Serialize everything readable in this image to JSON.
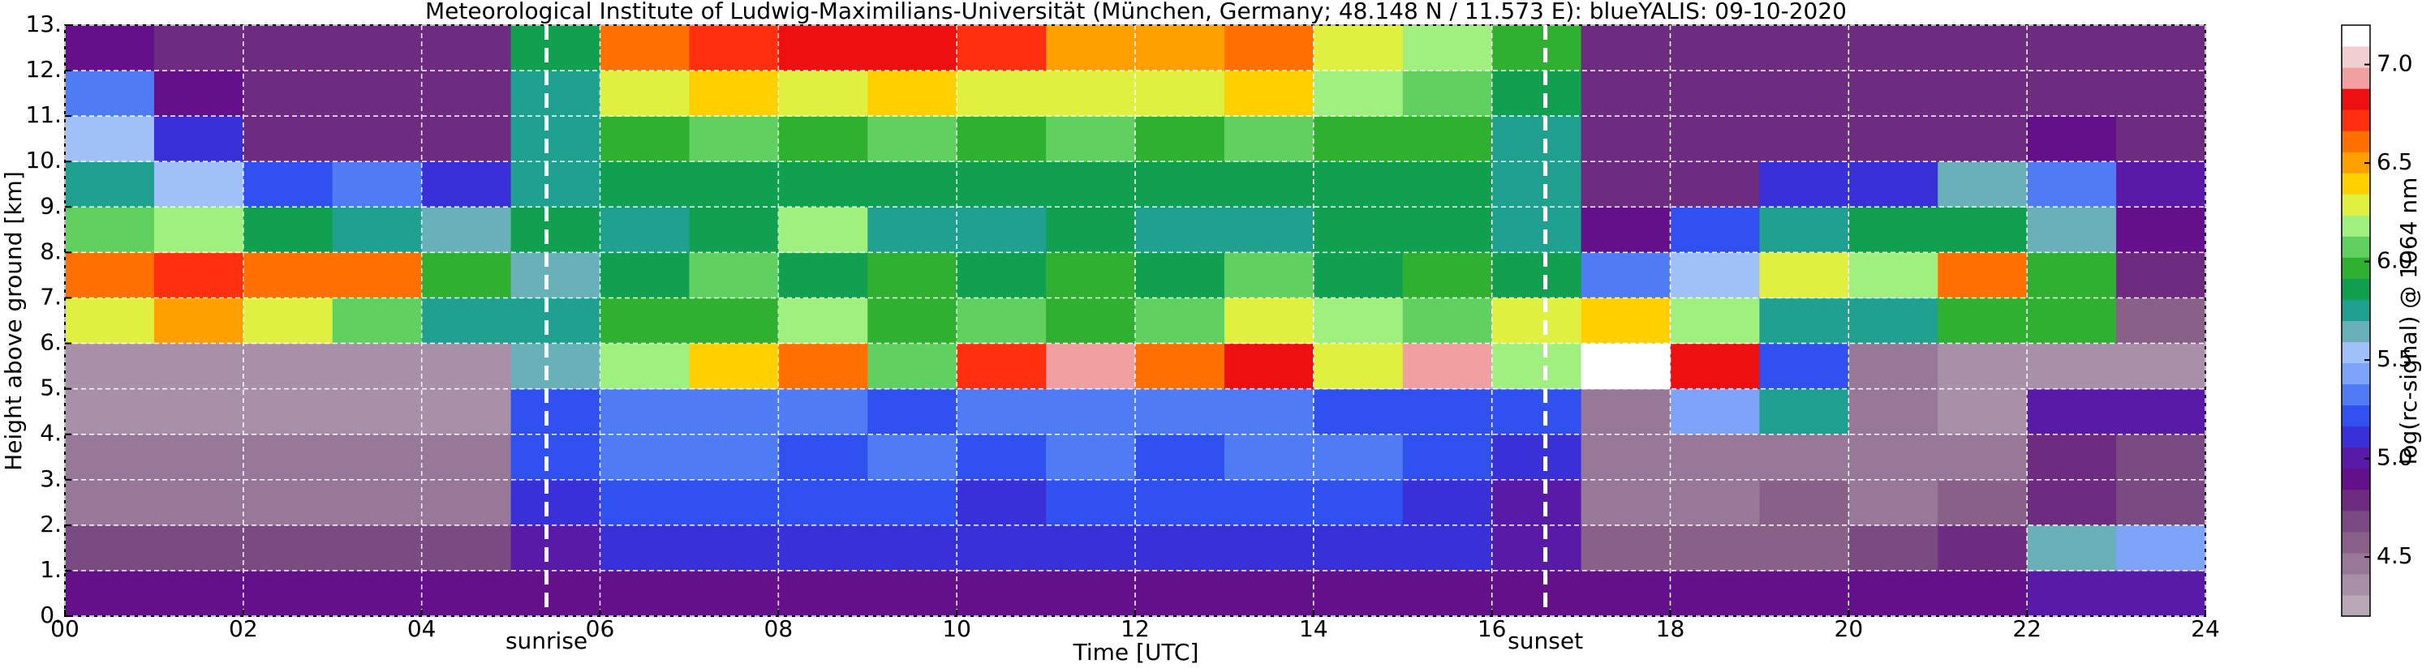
{
  "chart_data": {
    "type": "heatmap",
    "title": "Meteorological Institute of Ludwig-Maximilians-Universität (München, Germany; 48.148 N / 11.573 E):    blueYALIS: 09-10-2020",
    "x_label": "Time [UTC]",
    "y_label": "Height above ground [km]",
    "xbins": [
      0,
      1,
      2,
      3,
      4,
      5,
      6,
      7,
      8,
      9,
      10,
      11,
      12,
      13,
      14,
      15,
      16,
      17,
      18,
      19,
      20,
      21,
      22,
      23,
      24
    ],
    "ybins": [
      0,
      1,
      2,
      3,
      4,
      5,
      6,
      7,
      8,
      9,
      10,
      11,
      12,
      13
    ],
    "z": [
      [
        4.9,
        4.9,
        4.9,
        4.9,
        4.9,
        4.9,
        4.9,
        4.9,
        4.9,
        4.9,
        4.9,
        4.9,
        4.9,
        4.9,
        4.9,
        4.9,
        4.9,
        4.9,
        4.9,
        4.9,
        4.9,
        4.9,
        5.0,
        5.0
      ],
      [
        4.7,
        4.7,
        4.7,
        4.7,
        4.7,
        5.0,
        5.1,
        5.1,
        5.1,
        5.1,
        5.1,
        5.1,
        5.1,
        5.1,
        5.1,
        5.1,
        5.0,
        4.6,
        4.6,
        4.6,
        4.7,
        4.8,
        5.6,
        5.4
      ],
      [
        4.5,
        4.5,
        4.5,
        4.5,
        4.5,
        5.1,
        5.2,
        5.2,
        5.2,
        5.2,
        5.1,
        5.2,
        5.2,
        5.2,
        5.2,
        5.1,
        5.0,
        4.5,
        4.5,
        4.6,
        4.5,
        4.6,
        4.8,
        4.7
      ],
      [
        4.5,
        4.5,
        4.5,
        4.5,
        4.5,
        5.2,
        5.3,
        5.3,
        5.2,
        5.3,
        5.2,
        5.3,
        5.2,
        5.3,
        5.3,
        5.2,
        5.1,
        4.5,
        4.5,
        4.5,
        4.5,
        4.5,
        4.8,
        4.7
      ],
      [
        4.4,
        4.4,
        4.4,
        4.4,
        4.4,
        5.2,
        5.3,
        5.3,
        5.3,
        5.2,
        5.3,
        5.3,
        5.3,
        5.3,
        5.2,
        5.2,
        5.2,
        4.5,
        5.4,
        5.8,
        4.5,
        4.4,
        5.0,
        5.0
      ],
      [
        4.4,
        4.4,
        4.4,
        4.4,
        4.4,
        5.6,
        6.2,
        6.4,
        6.6,
        6.1,
        6.7,
        6.9,
        6.6,
        6.8,
        6.3,
        6.9,
        6.2,
        7.1,
        6.8,
        5.2,
        4.5,
        4.4,
        4.4,
        4.4
      ],
      [
        6.3,
        6.5,
        6.3,
        6.1,
        5.8,
        5.7,
        6.0,
        6.0,
        6.2,
        6.0,
        6.1,
        6.0,
        6.1,
        6.3,
        6.2,
        6.1,
        6.3,
        6.4,
        6.2,
        5.8,
        5.7,
        6.0,
        6.0,
        4.6
      ],
      [
        6.6,
        6.7,
        6.6,
        6.6,
        6.0,
        5.6,
        5.9,
        6.1,
        5.9,
        6.0,
        5.9,
        6.0,
        5.9,
        6.1,
        5.9,
        6.0,
        5.9,
        5.3,
        5.5,
        6.3,
        6.2,
        6.6,
        6.0,
        4.8
      ],
      [
        6.1,
        6.2,
        5.9,
        5.8,
        5.6,
        5.9,
        5.8,
        5.9,
        6.2,
        5.8,
        5.8,
        5.9,
        5.8,
        5.8,
        5.9,
        5.9,
        5.8,
        4.9,
        5.2,
        5.8,
        5.9,
        5.9,
        5.6,
        4.9
      ],
      [
        5.7,
        5.5,
        5.2,
        5.3,
        5.1,
        5.8,
        5.9,
        5.9,
        5.9,
        5.9,
        5.9,
        5.9,
        5.9,
        5.9,
        5.9,
        5.9,
        5.8,
        4.8,
        4.8,
        5.1,
        5.1,
        5.6,
        5.3,
        5.0
      ],
      [
        5.5,
        5.1,
        4.8,
        4.8,
        4.8,
        5.8,
        6.0,
        6.1,
        6.0,
        6.1,
        6.0,
        6.1,
        6.0,
        6.1,
        6.0,
        6.0,
        5.8,
        4.8,
        4.8,
        4.8,
        4.8,
        4.8,
        4.9,
        4.8
      ],
      [
        5.3,
        4.9,
        4.8,
        4.8,
        4.8,
        5.8,
        6.3,
        6.4,
        6.3,
        6.4,
        6.3,
        6.3,
        6.3,
        6.4,
        6.2,
        6.1,
        5.9,
        4.8,
        4.8,
        4.8,
        4.8,
        4.8,
        4.8,
        4.8
      ],
      [
        4.9,
        4.8,
        4.8,
        4.8,
        4.8,
        5.9,
        6.6,
        6.7,
        6.8,
        6.8,
        6.7,
        6.5,
        6.5,
        6.6,
        6.3,
        6.2,
        6.0,
        4.8,
        4.8,
        4.8,
        4.8,
        4.8,
        4.8,
        4.8
      ]
    ],
    "xlim": [
      0,
      24
    ],
    "ylim": [
      0,
      13
    ],
    "xticks": [
      {
        "value": 0,
        "label": "00"
      },
      {
        "value": 2,
        "label": "02"
      },
      {
        "value": 4,
        "label": "04"
      },
      {
        "value": 6,
        "label": "06"
      },
      {
        "value": 8,
        "label": "08"
      },
      {
        "value": 10,
        "label": "10"
      },
      {
        "value": 12,
        "label": "12"
      },
      {
        "value": 14,
        "label": "14"
      },
      {
        "value": 16,
        "label": "16"
      },
      {
        "value": 18,
        "label": "18"
      },
      {
        "value": 20,
        "label": "20"
      },
      {
        "value": 22,
        "label": "22"
      },
      {
        "value": 24,
        "label": "24"
      }
    ],
    "yticks": [
      {
        "value": 0,
        "label": "0."
      },
      {
        "value": 1,
        "label": "1."
      },
      {
        "value": 2,
        "label": "2."
      },
      {
        "value": 3,
        "label": "3."
      },
      {
        "value": 4,
        "label": "4."
      },
      {
        "value": 5,
        "label": "5."
      },
      {
        "value": 6,
        "label": "6."
      },
      {
        "value": 7,
        "label": "7."
      },
      {
        "value": 8,
        "label": "8."
      },
      {
        "value": 9,
        "label": "9."
      },
      {
        "value": 10,
        "label": "10."
      },
      {
        "value": 11,
        "label": "11."
      },
      {
        "value": 12,
        "label": "12."
      },
      {
        "value": 13,
        "label": "13."
      }
    ],
    "grid": true,
    "annotations": [
      {
        "x": 5.4,
        "label": "sunrise"
      },
      {
        "x": 16.6,
        "label": "sunset"
      }
    ],
    "colorbar": {
      "label": "log(rc-signal) @ 1064 nm",
      "lim": [
        4.2,
        7.2
      ],
      "ticks": [
        4.5,
        {
          "value": 5,
          "label": "5.0"
        },
        5.5,
        {
          "value": 6,
          "label": "6.0"
        },
        6.5,
        {
          "value": 7,
          "label": "7.0"
        }
      ],
      "colors": [
        "#b8a8b8",
        "#a890a8",
        "#987898",
        "#886088",
        "#7a4a82",
        "#6e2c80",
        "#64108a",
        "#5a1aa8",
        "#3a30d8",
        "#3050f0",
        "#4f7cf4",
        "#7da4f8",
        "#a0c0f8",
        "#6ab0b8",
        "#20a090",
        "#10a050",
        "#30b030",
        "#60d060",
        "#a0f080",
        "#e0f040",
        "#ffd000",
        "#ffa000",
        "#ff7000",
        "#ff3010",
        "#ee1010",
        "#f0a0a0",
        "#f0d0d0",
        "#ffffff"
      ]
    }
  }
}
